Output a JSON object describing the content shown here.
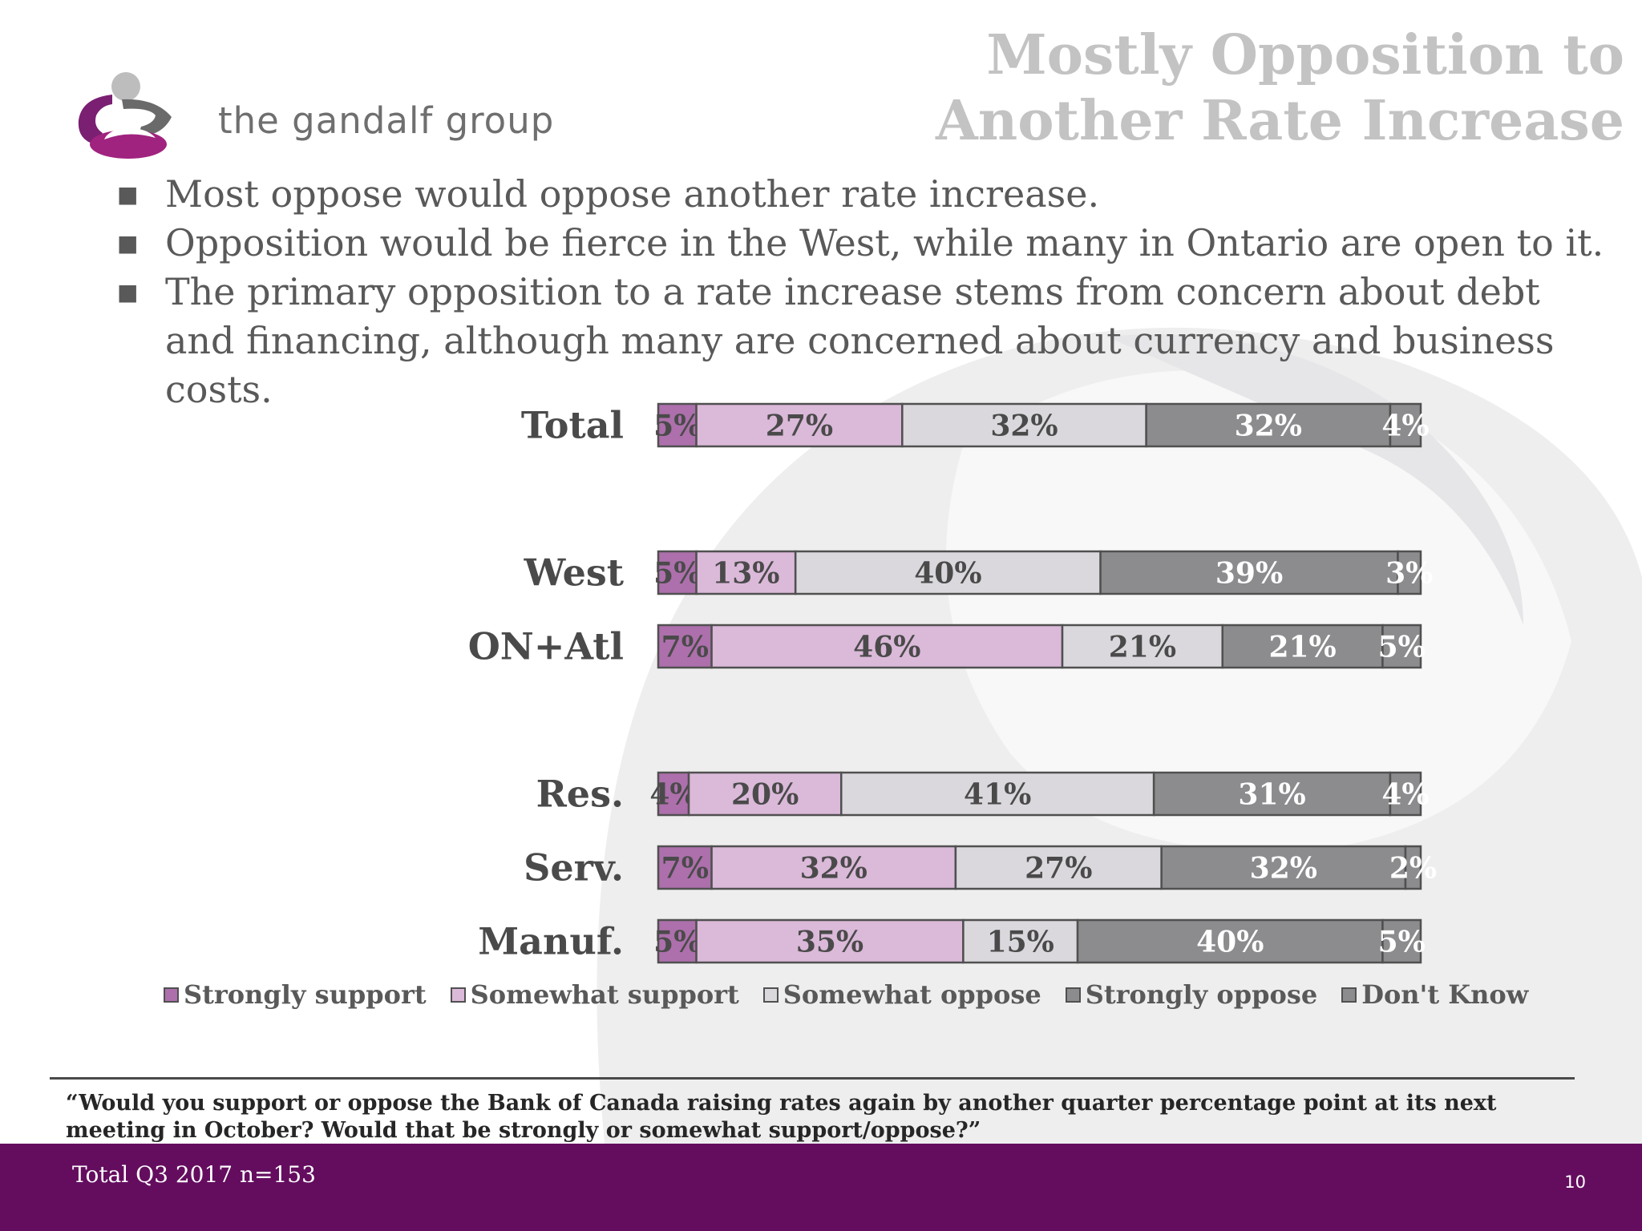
{
  "header": {
    "logo_text": "the gandalf group",
    "title_line1": "Mostly Opposition to",
    "title_line2": "Another Rate Increase"
  },
  "bullets": [
    "Most oppose would oppose another rate increase.",
    "Opposition would be fierce in the West, while many in Ontario are open to it.",
    "The primary opposition to a rate increase stems from concern about debt and financing, although many are concerned about currency and business costs."
  ],
  "chart_data": {
    "type": "bar",
    "orientation": "horizontal",
    "stacked": true,
    "categories": [
      "Total",
      "West",
      "ON+Atl",
      "Res.",
      "Serv.",
      "Manuf."
    ],
    "series": [
      {
        "name": "Strongly support",
        "color": "#ad70ac",
        "values": [
          5,
          5,
          7,
          4,
          7,
          5
        ],
        "labels": [
          "5%",
          "5%",
          "7%",
          "4%",
          "7%",
          "5%"
        ]
      },
      {
        "name": "Somewhat support",
        "color": "#dbb9d9",
        "values": [
          27,
          13,
          46,
          20,
          32,
          35
        ],
        "labels": [
          "27%",
          "13%",
          "46%",
          "20%",
          "32%",
          "35%"
        ]
      },
      {
        "name": "Somewhat oppose",
        "color": "#dad8dc",
        "values": [
          32,
          40,
          21,
          41,
          27,
          15
        ],
        "labels": [
          "32%",
          "40%",
          "21%",
          "41%",
          "27%",
          "15%"
        ]
      },
      {
        "name": "Strongly oppose",
        "color": "#8c8b8e",
        "values": [
          32,
          39,
          21,
          31,
          32,
          40
        ],
        "labels": [
          "32%",
          "39%",
          "21%",
          "31%",
          "32%",
          "40%"
        ]
      },
      {
        "name": "Don't Know",
        "color": "#8c8b8e",
        "values": [
          4,
          3,
          5,
          4,
          2,
          5
        ],
        "labels": [
          "4%",
          "3%",
          "5%",
          "4%",
          "2%",
          "5%"
        ]
      }
    ],
    "label_colors": [
      "#4a4a4a",
      "#4a4a4a",
      "#4a4a4a",
      "#ffffff",
      "#ffffff"
    ],
    "legend_position": "bottom",
    "grid": false
  },
  "question": "“Would you support or oppose the Bank of Canada raising rates again by another quarter percentage point at its next meeting in October? Would that be strongly or somewhat support/oppose?”",
  "footer": {
    "sample": "Total Q3 2017 n=153",
    "page_number": "10"
  },
  "colors": {
    "brand_purple": "#640d5f",
    "title_gray": "#c3c3c3"
  }
}
